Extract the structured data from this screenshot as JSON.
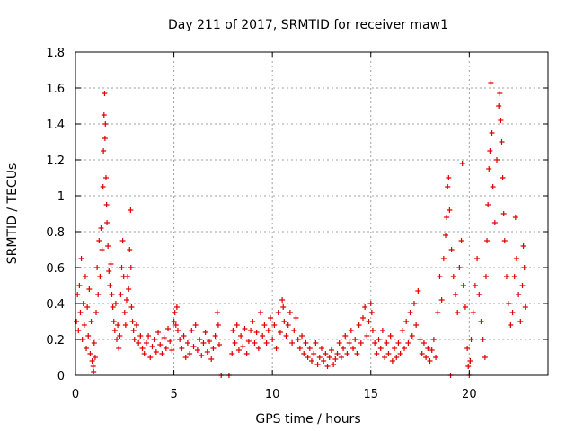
{
  "chart_data": {
    "type": "scatter",
    "title": "Day 211 of 2017, SRMTID for receiver maw1",
    "xlabel": "GPS time / hours",
    "ylabel": "SRMTID / TECUs",
    "xlim": [
      0,
      24
    ],
    "ylim": [
      0,
      1.8
    ],
    "xticks": [
      0,
      5,
      10,
      15,
      20
    ],
    "xtick_labels": [
      "0",
      "5",
      "10",
      "15",
      "20"
    ],
    "yticks": [
      0,
      0.2,
      0.4,
      0.6,
      0.8,
      1.0,
      1.2,
      1.4,
      1.6,
      1.8
    ],
    "ytick_labels": [
      "0",
      "0.2",
      "0.4",
      "0.6",
      "0.8",
      "1",
      "1.2",
      "1.4",
      "1.6",
      "1.8"
    ],
    "grid": true,
    "marker": "plus",
    "color": "#e00000",
    "series": [
      {
        "name": "maw1",
        "points": [
          [
            0.05,
            0.3
          ],
          [
            0.1,
            0.45
          ],
          [
            0.15,
            0.25
          ],
          [
            0.2,
            0.5
          ],
          [
            0.25,
            0.35
          ],
          [
            0.3,
            0.65
          ],
          [
            0.35,
            0.2
          ],
          [
            0.4,
            0.4
          ],
          [
            0.45,
            0.28
          ],
          [
            0.5,
            0.55
          ],
          [
            0.55,
            0.15
          ],
          [
            0.6,
            0.38
          ],
          [
            0.65,
            0.22
          ],
          [
            0.7,
            0.48
          ],
          [
            0.75,
            0.12
          ],
          [
            0.8,
            0.3
          ],
          [
            0.85,
            0.08
          ],
          [
            0.9,
            0.05
          ],
          [
            0.92,
            0.02
          ],
          [
            0.95,
            0.18
          ],
          [
            1.0,
            0.1
          ],
          [
            1.05,
            0.35
          ],
          [
            1.1,
            0.6
          ],
          [
            1.15,
            0.45
          ],
          [
            1.2,
            0.75
          ],
          [
            1.25,
            0.55
          ],
          [
            1.3,
            0.82
          ],
          [
            1.35,
            0.7
          ],
          [
            1.4,
            1.05
          ],
          [
            1.42,
            1.25
          ],
          [
            1.45,
            1.45
          ],
          [
            1.48,
            1.57
          ],
          [
            1.5,
            1.32
          ],
          [
            1.52,
            1.4
          ],
          [
            1.55,
            1.1
          ],
          [
            1.58,
            0.95
          ],
          [
            1.6,
            0.85
          ],
          [
            1.65,
            0.72
          ],
          [
            1.7,
            0.58
          ],
          [
            1.75,
            0.5
          ],
          [
            1.8,
            0.62
          ],
          [
            1.85,
            0.45
          ],
          [
            1.9,
            0.38
          ],
          [
            1.95,
            0.3
          ],
          [
            2.0,
            0.25
          ],
          [
            2.05,
            0.4
          ],
          [
            2.1,
            0.2
          ],
          [
            2.15,
            0.28
          ],
          [
            2.2,
            0.15
          ],
          [
            2.25,
            0.22
          ],
          [
            2.3,
            0.45
          ],
          [
            2.35,
            0.6
          ],
          [
            2.4,
            0.75
          ],
          [
            2.45,
            0.55
          ],
          [
            2.5,
            0.35
          ],
          [
            2.55,
            0.28
          ],
          [
            2.6,
            0.42
          ],
          [
            2.65,
            0.55
          ],
          [
            2.7,
            0.48
          ],
          [
            2.75,
            0.7
          ],
          [
            2.8,
            0.92
          ],
          [
            2.82,
            0.6
          ],
          [
            2.85,
            0.38
          ],
          [
            2.9,
            0.3
          ],
          [
            2.95,
            0.25
          ],
          [
            3.0,
            0.2
          ],
          [
            3.1,
            0.28
          ],
          [
            3.2,
            0.18
          ],
          [
            3.3,
            0.22
          ],
          [
            3.4,
            0.15
          ],
          [
            3.5,
            0.12
          ],
          [
            3.6,
            0.18
          ],
          [
            3.7,
            0.22
          ],
          [
            3.8,
            0.1
          ],
          [
            3.9,
            0.16
          ],
          [
            4.0,
            0.2
          ],
          [
            4.1,
            0.13
          ],
          [
            4.2,
            0.24
          ],
          [
            4.3,
            0.17
          ],
          [
            4.4,
            0.12
          ],
          [
            4.5,
            0.21
          ],
          [
            4.6,
            0.15
          ],
          [
            4.7,
            0.26
          ],
          [
            4.8,
            0.19
          ],
          [
            4.9,
            0.14
          ],
          [
            5.0,
            0.3
          ],
          [
            5.05,
            0.35
          ],
          [
            5.1,
            0.28
          ],
          [
            5.15,
            0.38
          ],
          [
            5.2,
            0.25
          ],
          [
            5.3,
            0.2
          ],
          [
            5.4,
            0.15
          ],
          [
            5.5,
            0.22
          ],
          [
            5.6,
            0.1
          ],
          [
            5.7,
            0.18
          ],
          [
            5.8,
            0.12
          ],
          [
            5.9,
            0.25
          ],
          [
            6.0,
            0.16
          ],
          [
            6.1,
            0.28
          ],
          [
            6.2,
            0.14
          ],
          [
            6.3,
            0.2
          ],
          [
            6.4,
            0.11
          ],
          [
            6.5,
            0.18
          ],
          [
            6.6,
            0.24
          ],
          [
            6.7,
            0.13
          ],
          [
            6.8,
            0.19
          ],
          [
            6.9,
            0.09
          ],
          [
            7.0,
            0.15
          ],
          [
            7.1,
            0.22
          ],
          [
            7.2,
            0.35
          ],
          [
            7.25,
            0.28
          ],
          [
            7.3,
            0.17
          ],
          [
            7.4,
            0.0
          ],
          [
            7.8,
            0.0
          ],
          [
            7.95,
            0.12
          ],
          [
            8.0,
            0.25
          ],
          [
            8.1,
            0.18
          ],
          [
            8.2,
            0.28
          ],
          [
            8.3,
            0.14
          ],
          [
            8.4,
            0.22
          ],
          [
            8.5,
            0.16
          ],
          [
            8.6,
            0.26
          ],
          [
            8.7,
            0.12
          ],
          [
            8.8,
            0.19
          ],
          [
            8.9,
            0.25
          ],
          [
            9.0,
            0.3
          ],
          [
            9.1,
            0.18
          ],
          [
            9.2,
            0.24
          ],
          [
            9.3,
            0.15
          ],
          [
            9.4,
            0.35
          ],
          [
            9.5,
            0.22
          ],
          [
            9.6,
            0.28
          ],
          [
            9.7,
            0.18
          ],
          [
            9.8,
            0.25
          ],
          [
            9.9,
            0.32
          ],
          [
            10.0,
            0.2
          ],
          [
            10.1,
            0.28
          ],
          [
            10.2,
            0.15
          ],
          [
            10.3,
            0.35
          ],
          [
            10.4,
            0.24
          ],
          [
            10.5,
            0.42
          ],
          [
            10.55,
            0.38
          ],
          [
            10.6,
            0.3
          ],
          [
            10.7,
            0.22
          ],
          [
            10.8,
            0.28
          ],
          [
            10.9,
            0.35
          ],
          [
            11.0,
            0.18
          ],
          [
            11.1,
            0.25
          ],
          [
            11.2,
            0.32
          ],
          [
            11.3,
            0.2
          ],
          [
            11.4,
            0.15
          ],
          [
            11.5,
            0.22
          ],
          [
            11.6,
            0.12
          ],
          [
            11.7,
            0.18
          ],
          [
            11.8,
            0.1
          ],
          [
            11.9,
            0.15
          ],
          [
            12.0,
            0.08
          ],
          [
            12.1,
            0.12
          ],
          [
            12.2,
            0.18
          ],
          [
            12.3,
            0.06
          ],
          [
            12.4,
            0.1
          ],
          [
            12.5,
            0.15
          ],
          [
            12.6,
            0.08
          ],
          [
            12.7,
            0.12
          ],
          [
            12.8,
            0.05
          ],
          [
            12.9,
            0.1
          ],
          [
            13.0,
            0.14
          ],
          [
            13.1,
            0.06
          ],
          [
            13.2,
            0.09
          ],
          [
            13.3,
            0.12
          ],
          [
            13.4,
            0.18
          ],
          [
            13.5,
            0.1
          ],
          [
            13.6,
            0.15
          ],
          [
            13.7,
            0.22
          ],
          [
            13.8,
            0.12
          ],
          [
            13.9,
            0.18
          ],
          [
            14.0,
            0.25
          ],
          [
            14.1,
            0.15
          ],
          [
            14.2,
            0.2
          ],
          [
            14.3,
            0.12
          ],
          [
            14.4,
            0.28
          ],
          [
            14.5,
            0.18
          ],
          [
            14.6,
            0.32
          ],
          [
            14.7,
            0.38
          ],
          [
            14.8,
            0.22
          ],
          [
            14.9,
            0.3
          ],
          [
            15.0,
            0.4
          ],
          [
            15.05,
            0.35
          ],
          [
            15.1,
            0.25
          ],
          [
            15.2,
            0.18
          ],
          [
            15.3,
            0.12
          ],
          [
            15.4,
            0.2
          ],
          [
            15.5,
            0.15
          ],
          [
            15.6,
            0.25
          ],
          [
            15.7,
            0.1
          ],
          [
            15.8,
            0.18
          ],
          [
            15.9,
            0.12
          ],
          [
            16.0,
            0.22
          ],
          [
            16.1,
            0.08
          ],
          [
            16.2,
            0.15
          ],
          [
            16.3,
            0.1
          ],
          [
            16.4,
            0.18
          ],
          [
            16.5,
            0.12
          ],
          [
            16.6,
            0.25
          ],
          [
            16.7,
            0.15
          ],
          [
            16.8,
            0.3
          ],
          [
            16.9,
            0.18
          ],
          [
            17.0,
            0.35
          ],
          [
            17.1,
            0.22
          ],
          [
            17.2,
            0.4
          ],
          [
            17.3,
            0.28
          ],
          [
            17.4,
            0.47
          ],
          [
            17.5,
            0.2
          ],
          [
            17.6,
            0.12
          ],
          [
            17.7,
            0.18
          ],
          [
            17.8,
            0.1
          ],
          [
            17.9,
            0.15
          ],
          [
            18.0,
            0.08
          ],
          [
            18.1,
            0.14
          ],
          [
            18.2,
            0.2
          ],
          [
            18.3,
            0.1
          ],
          [
            18.4,
            0.35
          ],
          [
            18.5,
            0.55
          ],
          [
            18.6,
            0.42
          ],
          [
            18.7,
            0.65
          ],
          [
            18.8,
            0.78
          ],
          [
            18.85,
            0.88
          ],
          [
            18.9,
            1.05
          ],
          [
            18.95,
            1.1
          ],
          [
            19.0,
            0.92
          ],
          [
            19.05,
            0.0
          ],
          [
            19.1,
            0.7
          ],
          [
            19.2,
            0.55
          ],
          [
            19.3,
            0.45
          ],
          [
            19.4,
            0.35
          ],
          [
            19.5,
            0.6
          ],
          [
            19.6,
            0.75
          ],
          [
            19.65,
            1.18
          ],
          [
            19.7,
            0.5
          ],
          [
            19.8,
            0.38
          ],
          [
            19.9,
            0.15
          ],
          [
            19.95,
            0.05
          ],
          [
            20.0,
            0.0
          ],
          [
            20.05,
            0.08
          ],
          [
            20.1,
            0.2
          ],
          [
            20.2,
            0.35
          ],
          [
            20.3,
            0.5
          ],
          [
            20.4,
            0.65
          ],
          [
            20.5,
            0.45
          ],
          [
            20.6,
            0.3
          ],
          [
            20.7,
            0.2
          ],
          [
            20.8,
            0.1
          ],
          [
            20.85,
            0.55
          ],
          [
            20.9,
            0.75
          ],
          [
            20.95,
            0.95
          ],
          [
            21.0,
            1.15
          ],
          [
            21.05,
            1.25
          ],
          [
            21.1,
            1.63
          ],
          [
            21.15,
            1.35
          ],
          [
            21.2,
            1.05
          ],
          [
            21.3,
            0.85
          ],
          [
            21.4,
            1.2
          ],
          [
            21.5,
            1.5
          ],
          [
            21.55,
            1.57
          ],
          [
            21.6,
            1.42
          ],
          [
            21.65,
            1.3
          ],
          [
            21.7,
            1.1
          ],
          [
            21.75,
            0.9
          ],
          [
            21.8,
            0.75
          ],
          [
            21.9,
            0.55
          ],
          [
            22.0,
            0.4
          ],
          [
            22.1,
            0.28
          ],
          [
            22.2,
            0.35
          ],
          [
            22.3,
            0.55
          ],
          [
            22.35,
            0.88
          ],
          [
            22.4,
            0.65
          ],
          [
            22.5,
            0.45
          ],
          [
            22.6,
            0.3
          ],
          [
            22.7,
            0.5
          ],
          [
            22.75,
            0.72
          ],
          [
            22.8,
            0.6
          ],
          [
            22.85,
            0.38
          ]
        ]
      }
    ]
  }
}
